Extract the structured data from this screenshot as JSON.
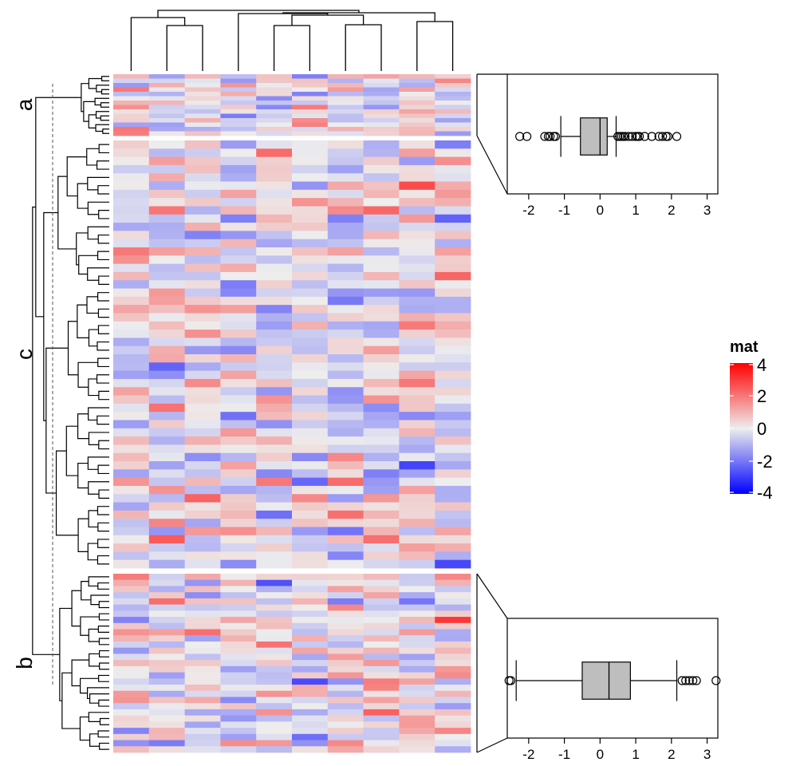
{
  "chart_data": [
    {
      "type": "heatmap",
      "title": "",
      "n_rows": 95,
      "n_cols": 10,
      "row_slices": [
        {
          "name": "a",
          "n_rows": 14
        },
        {
          "name": "c",
          "n_rows": 52
        },
        {
          "name": "b",
          "n_rows": 29
        }
      ],
      "legend": {
        "title": "mat",
        "ticks": [
          4,
          2,
          0,
          -2,
          -4
        ],
        "tick_labels": [
          "4",
          "2",
          "0",
          "-2",
          "-4"
        ],
        "range": [
          -4,
          4
        ],
        "colors": {
          "low": "#0000FF",
          "mid": "#EEEEEE",
          "high": "#FF0000"
        },
        "placement": "right"
      },
      "dendrograms": [
        "rows-left",
        "columns-top"
      ]
    },
    {
      "type": "box",
      "slice": "a",
      "xlim": [
        -2.6,
        3.3
      ],
      "ticks": [
        -2,
        -1,
        0,
        1,
        2,
        3
      ],
      "tick_labels": [
        "-2",
        "-1",
        "0",
        "1",
        "2",
        "3"
      ],
      "stats": {
        "min": -1.1,
        "q1": -0.55,
        "median": 0.0,
        "q3": 0.2,
        "max": 0.45
      },
      "outliers": [
        -2.25,
        -2.05,
        -1.55,
        -1.45,
        -1.4,
        -1.3,
        -1.25,
        0.5,
        0.55,
        0.6,
        0.65,
        0.7,
        0.8,
        0.9,
        1.0,
        1.05,
        1.1,
        1.25,
        1.45,
        1.65,
        1.75,
        1.85,
        1.9,
        2.15
      ]
    },
    {
      "type": "box",
      "slice": "b",
      "xlim": [
        -2.6,
        3.3
      ],
      "ticks": [
        -2,
        -1,
        0,
        1,
        2,
        3
      ],
      "tick_labels": [
        "-2",
        "-1",
        "0",
        "1",
        "2",
        "3"
      ],
      "stats": {
        "min": -2.35,
        "q1": -0.5,
        "median": 0.25,
        "q3": 0.85,
        "max": 2.15
      },
      "outliers": [
        -2.55,
        -2.5,
        2.3,
        2.4,
        2.5,
        2.6,
        2.7,
        3.25
      ]
    }
  ]
}
